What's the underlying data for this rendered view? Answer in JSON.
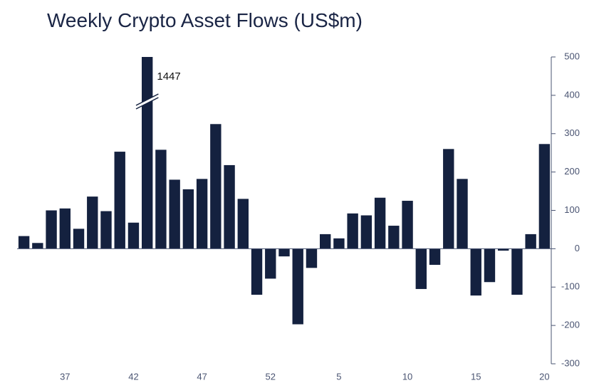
{
  "chart_data": {
    "type": "bar",
    "title": "Weekly Crypto Asset Flows (US$m)",
    "categories": [
      null,
      null,
      null,
      "37",
      null,
      null,
      null,
      null,
      "42",
      null,
      null,
      null,
      null,
      "47",
      null,
      null,
      null,
      null,
      "52",
      null,
      null,
      null,
      null,
      "5",
      null,
      null,
      null,
      null,
      "10",
      null,
      null,
      null,
      null,
      "15",
      null,
      null,
      null,
      null,
      "20"
    ],
    "values": [
      33,
      15,
      100,
      105,
      52,
      136,
      98,
      253,
      68,
      1447,
      258,
      180,
      155,
      182,
      325,
      218,
      130,
      -120,
      -78,
      -20,
      -197,
      -50,
      38,
      27,
      92,
      87,
      133,
      60,
      125,
      -105,
      -42,
      260,
      182,
      -122,
      -87,
      -5,
      -120,
      38,
      273
    ],
    "color": "#14213f",
    "ylim": [
      -300,
      500
    ],
    "yticks": [
      -300,
      -200,
      -100,
      0,
      100,
      200,
      300,
      400,
      500
    ],
    "y_axis_side": "right",
    "grid": false
  }
}
